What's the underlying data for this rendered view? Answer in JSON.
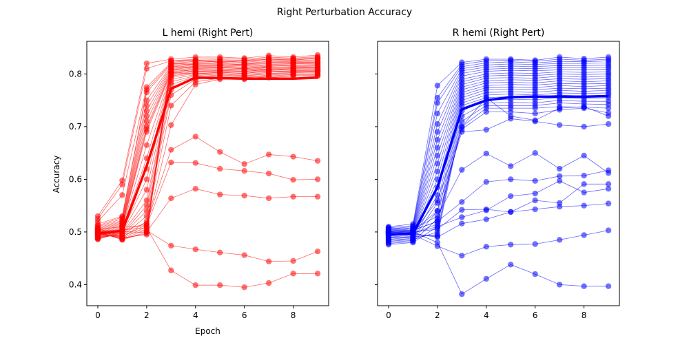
{
  "figure_title": "Right Perturbation Accuracy",
  "chart_data": [
    {
      "type": "line",
      "title": "L hemi (Right Pert)",
      "xlabel": "Epoch",
      "ylabel": "Accuracy",
      "xlim": [
        -0.45,
        9.45
      ],
      "ylim": [
        0.36,
        0.862
      ],
      "xticks": [
        0,
        2,
        4,
        6,
        8
      ],
      "xtick_labels": [
        "0",
        "2",
        "4",
        "6",
        "8"
      ],
      "yticks": [
        0.4,
        0.5,
        0.6,
        0.7,
        0.8
      ],
      "ytick_labels": [
        "0.4",
        "0.5",
        "0.6",
        "0.7",
        "0.8"
      ],
      "color": "#ff0000",
      "grid": false,
      "x": [
        0,
        1,
        2,
        3,
        4,
        5,
        6,
        7,
        8,
        9
      ],
      "mean": [
        0.497,
        0.502,
        0.625,
        0.772,
        0.793,
        0.792,
        0.791,
        0.791,
        0.791,
        0.793
      ],
      "series": [
        {
          "values": [
            0.502,
            0.504,
            0.508,
            0.427,
            0.399,
            0.399,
            0.395,
            0.403,
            0.421,
            0.421
          ]
        },
        {
          "values": [
            0.498,
            0.5,
            0.503,
            0.474,
            0.467,
            0.461,
            0.456,
            0.444,
            0.445,
            0.463
          ]
        },
        {
          "values": [
            0.495,
            0.497,
            0.5,
            0.564,
            0.582,
            0.571,
            0.569,
            0.564,
            0.567,
            0.567
          ]
        },
        {
          "values": [
            0.505,
            0.51,
            0.512,
            0.632,
            0.631,
            0.62,
            0.616,
            0.611,
            0.599,
            0.6
          ]
        },
        {
          "values": [
            0.5,
            0.503,
            0.516,
            0.656,
            0.681,
            0.652,
            0.629,
            0.647,
            0.643,
            0.635
          ]
        },
        {
          "values": [
            0.53,
            0.598,
            0.82,
            0.828,
            0.832,
            0.832,
            0.83,
            0.835,
            0.832,
            0.836
          ]
        },
        {
          "values": [
            0.525,
            0.59,
            0.81,
            0.825,
            0.828,
            0.829,
            0.828,
            0.832,
            0.83,
            0.833
          ]
        },
        {
          "values": [
            0.52,
            0.57,
            0.775,
            0.822,
            0.826,
            0.827,
            0.826,
            0.83,
            0.829,
            0.831
          ]
        },
        {
          "values": [
            0.515,
            0.53,
            0.77,
            0.82,
            0.824,
            0.825,
            0.824,
            0.828,
            0.827,
            0.829
          ]
        },
        {
          "values": [
            0.512,
            0.528,
            0.765,
            0.818,
            0.822,
            0.824,
            0.822,
            0.826,
            0.825,
            0.827
          ]
        },
        {
          "values": [
            0.51,
            0.525,
            0.75,
            0.816,
            0.82,
            0.822,
            0.82,
            0.824,
            0.823,
            0.825
          ]
        },
        {
          "values": [
            0.508,
            0.522,
            0.74,
            0.814,
            0.819,
            0.82,
            0.818,
            0.822,
            0.822,
            0.823
          ]
        },
        {
          "values": [
            0.506,
            0.52,
            0.73,
            0.812,
            0.817,
            0.818,
            0.817,
            0.82,
            0.82,
            0.821
          ]
        },
        {
          "values": [
            0.504,
            0.518,
            0.72,
            0.81,
            0.815,
            0.817,
            0.815,
            0.818,
            0.819,
            0.82
          ]
        },
        {
          "values": [
            0.502,
            0.516,
            0.71,
            0.808,
            0.814,
            0.815,
            0.813,
            0.817,
            0.817,
            0.818
          ]
        },
        {
          "values": [
            0.5,
            0.514,
            0.7,
            0.806,
            0.812,
            0.813,
            0.812,
            0.815,
            0.816,
            0.816
          ]
        },
        {
          "values": [
            0.498,
            0.512,
            0.695,
            0.804,
            0.81,
            0.812,
            0.81,
            0.813,
            0.814,
            0.815
          ]
        },
        {
          "values": [
            0.496,
            0.51,
            0.69,
            0.802,
            0.809,
            0.81,
            0.808,
            0.812,
            0.813,
            0.813
          ]
        },
        {
          "values": [
            0.494,
            0.508,
            0.665,
            0.8,
            0.807,
            0.808,
            0.807,
            0.81,
            0.811,
            0.812
          ]
        },
        {
          "values": [
            0.492,
            0.506,
            0.64,
            0.798,
            0.805,
            0.807,
            0.805,
            0.808,
            0.81,
            0.81
          ]
        },
        {
          "values": [
            0.49,
            0.504,
            0.62,
            0.796,
            0.803,
            0.805,
            0.803,
            0.807,
            0.808,
            0.808
          ]
        },
        {
          "values": [
            0.488,
            0.502,
            0.6,
            0.794,
            0.801,
            0.803,
            0.801,
            0.805,
            0.806,
            0.807
          ]
        },
        {
          "values": [
            0.486,
            0.5,
            0.58,
            0.79,
            0.799,
            0.801,
            0.799,
            0.803,
            0.805,
            0.805
          ]
        },
        {
          "values": [
            0.487,
            0.498,
            0.56,
            0.785,
            0.797,
            0.8,
            0.797,
            0.801,
            0.803,
            0.804
          ]
        },
        {
          "values": [
            0.489,
            0.496,
            0.55,
            0.78,
            0.795,
            0.798,
            0.796,
            0.8,
            0.802,
            0.802
          ]
        },
        {
          "values": [
            0.491,
            0.494,
            0.54,
            0.77,
            0.793,
            0.796,
            0.794,
            0.798,
            0.8,
            0.8
          ]
        },
        {
          "values": [
            0.493,
            0.492,
            0.53,
            0.76,
            0.79,
            0.794,
            0.793,
            0.796,
            0.799,
            0.799
          ]
        },
        {
          "values": [
            0.495,
            0.49,
            0.52,
            0.74,
            0.785,
            0.792,
            0.791,
            0.795,
            0.797,
            0.797
          ]
        },
        {
          "values": [
            0.497,
            0.488,
            0.51,
            0.703,
            0.78,
            0.79,
            0.79,
            0.793,
            0.796,
            0.796
          ]
        },
        {
          "values": [
            0.499,
            0.486,
            0.505,
            0.825,
            0.826,
            0.822,
            0.825,
            0.828,
            0.826,
            0.83
          ]
        },
        {
          "values": [
            0.501,
            0.485,
            0.5,
            0.82,
            0.818,
            0.816,
            0.819,
            0.822,
            0.821,
            0.822
          ]
        },
        {
          "values": [
            0.503,
            0.487,
            0.497,
            0.815,
            0.811,
            0.812,
            0.81,
            0.814,
            0.812,
            0.812
          ]
        },
        {
          "values": [
            0.505,
            0.489,
            0.495,
            0.81,
            0.804,
            0.806,
            0.805,
            0.809,
            0.807,
            0.808
          ]
        },
        {
          "values": [
            0.507,
            0.491,
            0.514,
            0.803,
            0.8,
            0.803,
            0.801,
            0.806,
            0.804,
            0.806
          ]
        }
      ]
    },
    {
      "type": "line",
      "title": "R hemi (Right Pert)",
      "xlabel": "",
      "ylabel": "",
      "xlim": [
        -0.45,
        9.45
      ],
      "ylim": [
        0.36,
        0.862
      ],
      "xticks": [
        0,
        2,
        4,
        6,
        8
      ],
      "xtick_labels": [
        "0",
        "2",
        "4",
        "6",
        "8"
      ],
      "yticks": [
        0.4,
        0.5,
        0.6,
        0.7,
        0.8
      ],
      "ytick_labels": [
        "",
        "",
        "",
        "",
        ""
      ],
      "color": "#0000ff",
      "grid": false,
      "x": [
        0,
        1,
        2,
        3,
        4,
        5,
        6,
        7,
        8,
        9
      ],
      "mean": [
        0.495,
        0.497,
        0.585,
        0.733,
        0.75,
        0.756,
        0.757,
        0.757,
        0.757,
        0.758
      ],
      "series": [
        {
          "values": [
            0.5,
            0.5,
            0.48,
            0.382,
            0.411,
            0.438,
            0.42,
            0.4,
            0.397,
            0.397
          ]
        },
        {
          "values": [
            0.495,
            0.495,
            0.473,
            0.455,
            0.472,
            0.476,
            0.477,
            0.485,
            0.494,
            0.503
          ]
        },
        {
          "values": [
            0.498,
            0.497,
            0.49,
            0.516,
            0.524,
            0.538,
            0.543,
            0.548,
            0.55,
            0.554
          ]
        },
        {
          "values": [
            0.502,
            0.5,
            0.505,
            0.542,
            0.543,
            0.538,
            0.56,
            0.555,
            0.591,
            0.591
          ]
        },
        {
          "values": [
            0.505,
            0.503,
            0.52,
            0.557,
            0.595,
            0.6,
            0.597,
            0.606,
            0.607,
            0.617
          ]
        },
        {
          "values": [
            0.5,
            0.498,
            0.51,
            0.528,
            0.541,
            0.568,
            0.573,
            0.597,
            0.575,
            0.582
          ]
        },
        {
          "values": [
            0.508,
            0.505,
            0.53,
            0.618,
            0.649,
            0.625,
            0.65,
            0.62,
            0.645,
            0.612
          ]
        },
        {
          "values": [
            0.51,
            0.515,
            0.778,
            0.822,
            0.828,
            0.828,
            0.826,
            0.832,
            0.829,
            0.832
          ]
        },
        {
          "values": [
            0.508,
            0.512,
            0.755,
            0.818,
            0.825,
            0.826,
            0.824,
            0.828,
            0.826,
            0.828
          ]
        },
        {
          "values": [
            0.506,
            0.51,
            0.745,
            0.814,
            0.821,
            0.823,
            0.821,
            0.824,
            0.823,
            0.825
          ]
        },
        {
          "values": [
            0.504,
            0.508,
            0.725,
            0.81,
            0.817,
            0.819,
            0.818,
            0.82,
            0.82,
            0.821
          ]
        },
        {
          "values": [
            0.502,
            0.506,
            0.705,
            0.806,
            0.813,
            0.815,
            0.814,
            0.816,
            0.816,
            0.817
          ]
        },
        {
          "values": [
            0.5,
            0.504,
            0.69,
            0.801,
            0.809,
            0.811,
            0.81,
            0.812,
            0.812,
            0.813
          ]
        },
        {
          "values": [
            0.498,
            0.502,
            0.675,
            0.796,
            0.805,
            0.807,
            0.806,
            0.808,
            0.808,
            0.809
          ]
        },
        {
          "values": [
            0.496,
            0.5,
            0.66,
            0.79,
            0.8,
            0.802,
            0.801,
            0.804,
            0.803,
            0.804
          ]
        },
        {
          "values": [
            0.494,
            0.498,
            0.645,
            0.785,
            0.796,
            0.798,
            0.797,
            0.8,
            0.799,
            0.8
          ]
        },
        {
          "values": [
            0.492,
            0.496,
            0.63,
            0.78,
            0.792,
            0.793,
            0.792,
            0.796,
            0.794,
            0.796
          ]
        },
        {
          "values": [
            0.49,
            0.494,
            0.615,
            0.775,
            0.787,
            0.789,
            0.788,
            0.791,
            0.79,
            0.791
          ]
        },
        {
          "values": [
            0.488,
            0.492,
            0.6,
            0.77,
            0.783,
            0.784,
            0.783,
            0.787,
            0.785,
            0.787
          ]
        },
        {
          "values": [
            0.486,
            0.49,
            0.585,
            0.765,
            0.778,
            0.78,
            0.779,
            0.782,
            0.781,
            0.782
          ]
        },
        {
          "values": [
            0.484,
            0.488,
            0.57,
            0.76,
            0.774,
            0.775,
            0.774,
            0.778,
            0.776,
            0.778
          ]
        },
        {
          "values": [
            0.482,
            0.486,
            0.555,
            0.755,
            0.77,
            0.771,
            0.77,
            0.773,
            0.772,
            0.773
          ]
        },
        {
          "values": [
            0.48,
            0.484,
            0.54,
            0.75,
            0.765,
            0.766,
            0.765,
            0.769,
            0.767,
            0.769
          ]
        },
        {
          "values": [
            0.478,
            0.482,
            0.525,
            0.745,
            0.76,
            0.762,
            0.76,
            0.764,
            0.763,
            0.764
          ]
        },
        {
          "values": [
            0.476,
            0.48,
            0.51,
            0.74,
            0.755,
            0.757,
            0.756,
            0.76,
            0.758,
            0.76
          ]
        },
        {
          "values": [
            0.485,
            0.485,
            0.5,
            0.73,
            0.75,
            0.752,
            0.751,
            0.755,
            0.753,
            0.755
          ]
        },
        {
          "values": [
            0.49,
            0.49,
            0.495,
            0.72,
            0.745,
            0.746,
            0.745,
            0.75,
            0.748,
            0.748
          ]
        },
        {
          "values": [
            0.495,
            0.495,
            0.492,
            0.71,
            0.74,
            0.74,
            0.74,
            0.745,
            0.743,
            0.742
          ]
        },
        {
          "values": [
            0.497,
            0.497,
            0.515,
            0.7,
            0.735,
            0.735,
            0.735,
            0.738,
            0.737,
            0.735
          ]
        },
        {
          "values": [
            0.499,
            0.499,
            0.56,
            0.695,
            0.728,
            0.728,
            0.725,
            0.732,
            0.735,
            0.726
          ]
        },
        {
          "values": [
            0.501,
            0.501,
            0.54,
            0.69,
            0.694,
            0.715,
            0.71,
            0.703,
            0.7,
            0.705
          ]
        },
        {
          "values": [
            0.503,
            0.503,
            0.52,
            0.7,
            0.755,
            0.72,
            0.712,
            0.735,
            0.738,
            0.72
          ]
        }
      ]
    }
  ]
}
